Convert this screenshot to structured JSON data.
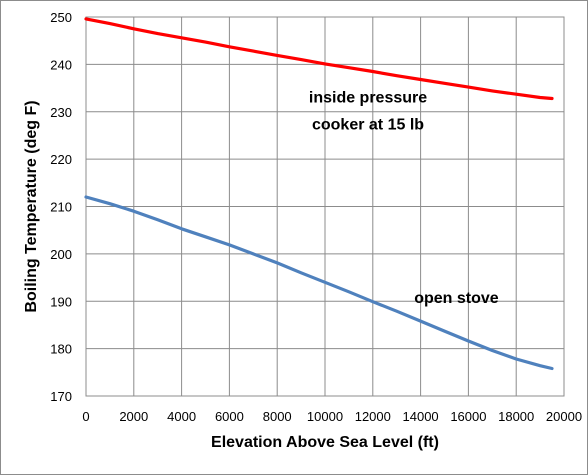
{
  "chart_data": {
    "type": "line",
    "xlabel": "Elevation Above Sea Level (ft)",
    "ylabel": "Boiling Temperature (deg F)",
    "xlim": [
      0,
      20000
    ],
    "ylim": [
      170,
      250
    ],
    "x_ticks": [
      0,
      2000,
      4000,
      6000,
      8000,
      10000,
      12000,
      14000,
      16000,
      18000,
      20000
    ],
    "y_ticks": [
      170,
      180,
      190,
      200,
      210,
      220,
      230,
      240,
      250
    ],
    "grid": true,
    "legend": "none",
    "annotations": [
      {
        "lines": [
          "inside pressure",
          "cooker at 15 lb"
        ],
        "series": 0
      },
      {
        "lines": [
          "open stove"
        ],
        "series": 1
      }
    ],
    "series": [
      {
        "color": "#ff0000",
        "x": [
          0,
          1000,
          2000,
          3000,
          4000,
          5000,
          6000,
          7000,
          8000,
          9000,
          10000,
          11000,
          12000,
          13000,
          14000,
          15000,
          16000,
          17000,
          18000,
          19000,
          19500
        ],
        "values": [
          249.6,
          248.6,
          247.5,
          246.5,
          245.6,
          244.7,
          243.7,
          242.8,
          241.9,
          241.0,
          240.1,
          239.3,
          238.5,
          237.6,
          236.8,
          236.0,
          235.2,
          234.4,
          233.7,
          233.0,
          232.8
        ]
      },
      {
        "color": "#4f81bd",
        "x": [
          0,
          1000,
          2000,
          3000,
          4000,
          5000,
          6000,
          7000,
          8000,
          9000,
          10000,
          11000,
          12000,
          13000,
          14000,
          15000,
          16000,
          17000,
          18000,
          19000,
          19500
        ],
        "values": [
          212.0,
          210.6,
          209.0,
          207.2,
          205.3,
          203.6,
          201.9,
          200.0,
          198.1,
          196.0,
          194.0,
          192.0,
          189.9,
          187.9,
          185.8,
          183.7,
          181.6,
          179.6,
          177.8,
          176.4,
          175.8
        ]
      }
    ]
  }
}
